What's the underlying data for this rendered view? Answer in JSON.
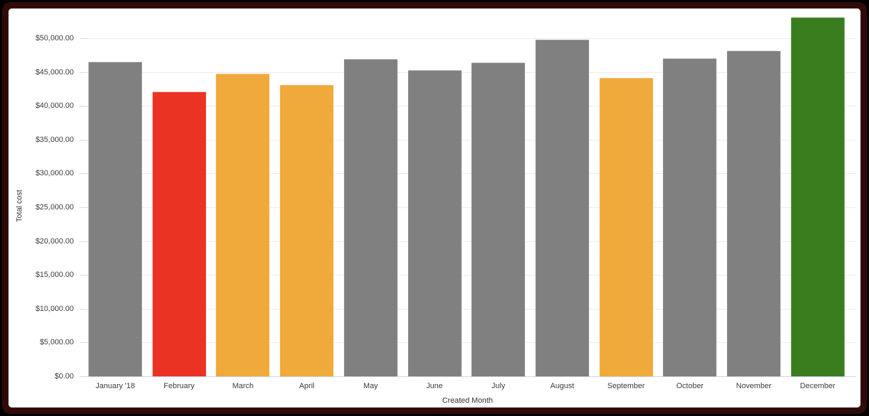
{
  "chart": {
    "frame": {
      "outer_bg": "#000000",
      "frame_color": "#300a08",
      "card_bg": "#ffffff",
      "card_border": "#c2c2c2"
    },
    "colors": {
      "gridline": "#ebebeb",
      "tick_stub": "#d8d8d8",
      "axis_line": "#ccd5e0",
      "tick_text": "#3c3c3c",
      "title_text": "#333333"
    }
  },
  "chart_data": {
    "type": "bar",
    "title": "",
    "xlabel": "Created Month",
    "ylabel": "Total cost",
    "categories": [
      "January '18",
      "February",
      "March",
      "April",
      "May",
      "June",
      "July",
      "August",
      "September",
      "October",
      "November",
      "December"
    ],
    "values": [
      46500,
      42100,
      44800,
      43100,
      46900,
      45300,
      46400,
      49800,
      44100,
      47000,
      48100,
      53100
    ],
    "bar_colors": [
      "gray",
      "red",
      "orange",
      "orange",
      "gray",
      "gray",
      "gray",
      "gray",
      "orange",
      "gray",
      "gray",
      "green"
    ],
    "palette": {
      "gray": "#808080",
      "red": "#EB3323",
      "orange": "#F0A93B",
      "green": "#3A7D1F"
    },
    "ylim": [
      0,
      53500
    ],
    "y_ticks": [
      {
        "value": 0,
        "label": "$0.00"
      },
      {
        "value": 5000,
        "label": "$5,000.00"
      },
      {
        "value": 10000,
        "label": "$10,000.00"
      },
      {
        "value": 15000,
        "label": "$15,000.00"
      },
      {
        "value": 20000,
        "label": "$20,000.00"
      },
      {
        "value": 25000,
        "label": "$25,000.00"
      },
      {
        "value": 30000,
        "label": "$30,000.00"
      },
      {
        "value": 35000,
        "label": "$35,000.00"
      },
      {
        "value": 40000,
        "label": "$40,000.00"
      },
      {
        "value": 45000,
        "label": "$45,000.00"
      },
      {
        "value": 50000,
        "label": "$50,000.00"
      }
    ],
    "grid": true,
    "legend": "none"
  }
}
